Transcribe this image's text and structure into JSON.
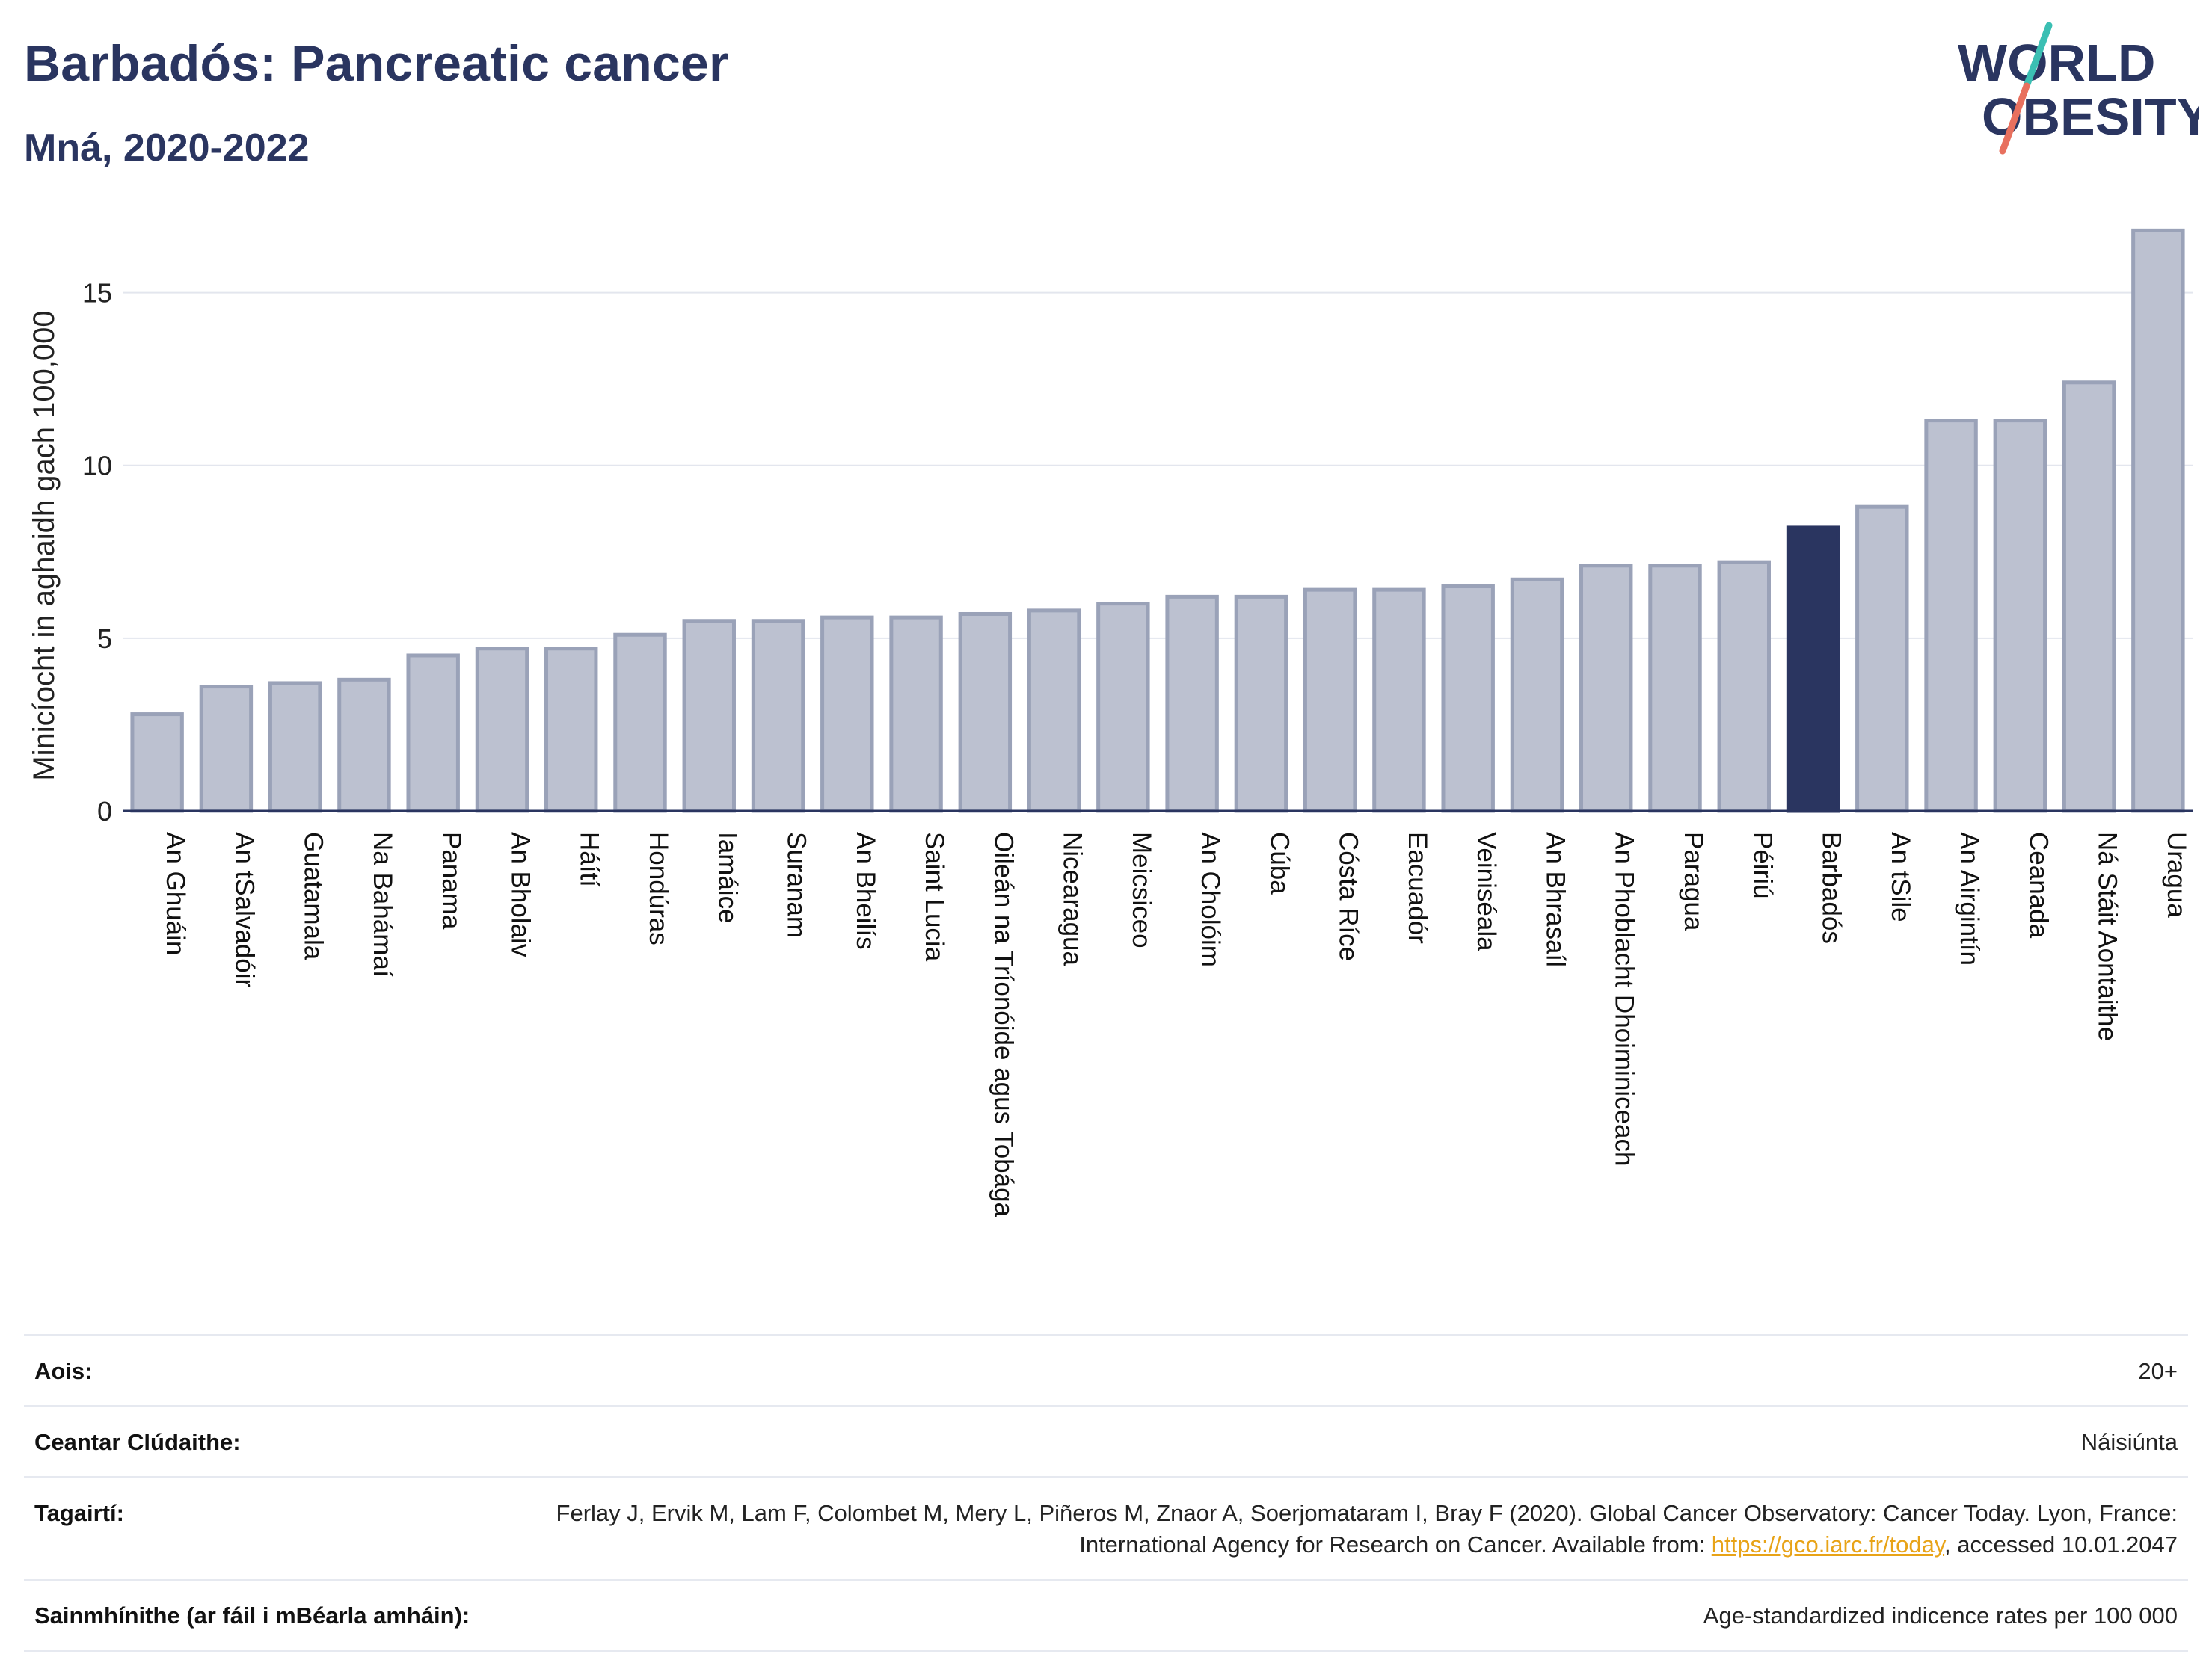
{
  "header": {
    "title": "Barbadós: Pancreatic cancer",
    "subtitle": "Mná, 2020-2022"
  },
  "logo": {
    "line1": "WORLD",
    "line2": "OBESITY"
  },
  "colors": {
    "bar": "#bcc1d0",
    "bar_stroke": "#9aa2b8",
    "highlight": "#2a3560",
    "grid": "#e3e6ee",
    "logo_text": "#2a3560",
    "logo_slash_top": "#3bbfb3",
    "logo_slash_bottom": "#e8705e"
  },
  "chart_data": {
    "type": "bar",
    "ylabel": "Minicíocht in aghaidh gach 100,000",
    "xlabel": "",
    "ylim": [
      0,
      17.5
    ],
    "yticks": [
      0,
      5,
      10,
      15
    ],
    "grid": true,
    "highlight": "Barbadós",
    "categories": [
      "An Ghuáin",
      "An tSalvadóir",
      "Guatamala",
      "Na Bahámaí",
      "Panama",
      "An Bholaiv",
      "Háítí",
      "Hondúras",
      "Iamáice",
      "Suranam",
      "An Bheilís",
      "Saint Lucia",
      "Oileán na Tríonóide agus Tobága",
      "Nicearagua",
      "Meicsiceo",
      "An Cholóim",
      "Cúba",
      "Cósta Ríce",
      "Eacuadór",
      "Veiniséala",
      "An Bhrasaíl",
      "An Phoblacht Dhoiminiceach",
      "Paragua",
      "Péiriú",
      "Barbadós",
      "An tSile",
      "An Airgintín",
      "Ceanada",
      "Ná Stáit Aontaithe",
      "Uragua"
    ],
    "values": [
      2.8,
      3.6,
      3.7,
      3.8,
      4.5,
      4.7,
      4.7,
      5.1,
      5.5,
      5.5,
      5.6,
      5.6,
      5.7,
      5.8,
      6.0,
      6.2,
      6.2,
      6.4,
      6.4,
      6.5,
      6.7,
      7.1,
      7.1,
      7.2,
      8.2,
      8.8,
      11.3,
      11.3,
      12.4,
      16.8
    ]
  },
  "meta": {
    "age_label": "Aois:",
    "age_value": "20+",
    "coverage_label": "Ceantar Clúdaithe:",
    "coverage_value": "Náisiúnta",
    "refs_label": "Tagairtí:",
    "refs_text": "Ferlay J, Ervik M, Lam F, Colombet M, Mery L, Piñeros M, Znaor A, Soerjomataram I, Bray F (2020). Global Cancer Observatory: Cancer Today. Lyon, France: International Agency for Research on Cancer. Available from: ",
    "refs_link": "https://gco.iarc.fr/today",
    "refs_after": ", accessed 10.01.2047",
    "defs_label": "Sainmhínithe (ar fáil i mBéarla amháin):",
    "defs_value": "Age-standardized indicence rates per 100 000"
  }
}
